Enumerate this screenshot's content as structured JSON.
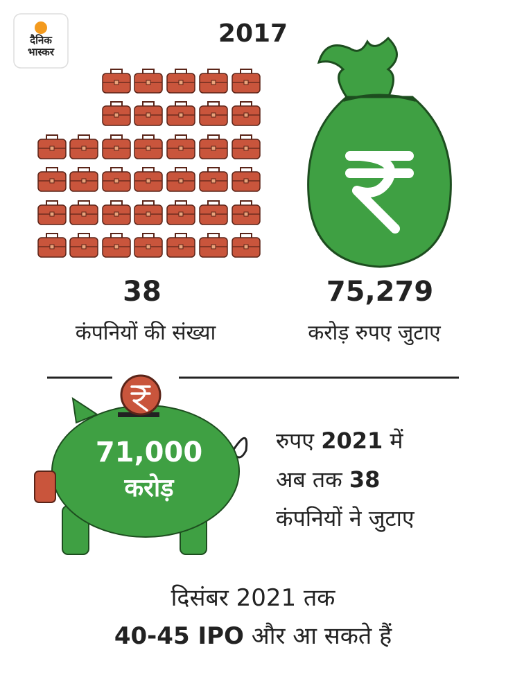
{
  "logo": {
    "line1": "दैनिक",
    "line2": "भास्कर"
  },
  "year": "2017",
  "stats": [
    {
      "value": "38",
      "label": "कंपनियों की संख्या"
    },
    {
      "value": "75,279",
      "label": "करोड़ रुपए जुटाए"
    }
  ],
  "piggy": {
    "amount": "71,000",
    "unit": "करोड़"
  },
  "note": [
    {
      "normal": "रुपए",
      "bold": "2021",
      "after": "में"
    },
    {
      "normal": "अब तक",
      "bold": "38"
    },
    {
      "normal": "कंपनियों ने जुटाए"
    }
  ],
  "footer": {
    "line1": "दिसंबर 2021 तक",
    "bold": "40-45 IPO",
    "rest": "और आ सकते हैं"
  }
}
